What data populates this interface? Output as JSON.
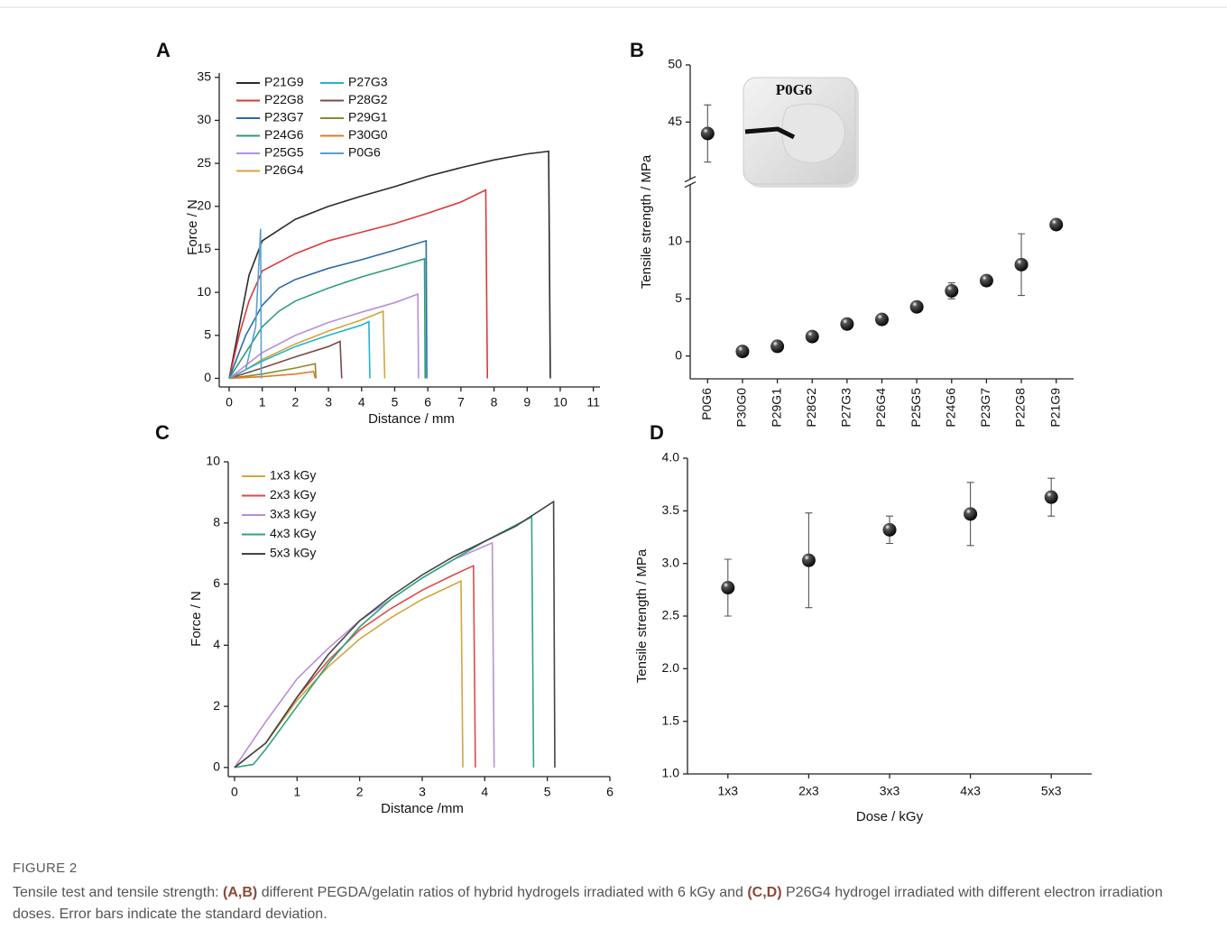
{
  "figure": {
    "label": "FIGURE 2",
    "caption": [
      "Tensile test and tensile strength: ",
      "(A,B)",
      " different PEGDA/gelatin ratios of hybrid hydrogels irradiated with 6 kGy and ",
      "(C,D)",
      " P26G4 hydrogel irradiated with different electron irradiation doses. Error bars indicate the standard deviation."
    ]
  },
  "chart_data": [
    {
      "type": "line",
      "panel": "A",
      "xlabel": "Distance / mm",
      "ylabel": "Force / N",
      "xlim": [
        -0.3,
        11.2
      ],
      "xticks": [
        0,
        1,
        2,
        3,
        4,
        5,
        6,
        7,
        8,
        9,
        10,
        11
      ],
      "ylim": [
        -1,
        35.5
      ],
      "yticks": [
        0,
        5,
        10,
        15,
        20,
        25,
        30,
        35
      ],
      "legend": "upper left",
      "series": [
        {
          "name": "P21G9",
          "color": "#2b2b2b",
          "x": [
            0,
            0.3,
            0.6,
            1,
            2,
            3,
            4,
            5,
            6,
            7,
            8,
            9,
            9.65,
            9.7
          ],
          "values": [
            0,
            6,
            12,
            16,
            18.5,
            20,
            21.2,
            22.3,
            23.5,
            24.5,
            25.4,
            26.1,
            26.4,
            0
          ]
        },
        {
          "name": "P22G8",
          "color": "#d93a3a",
          "x": [
            0,
            0.3,
            0.6,
            1,
            2,
            3,
            4,
            5,
            6,
            7,
            7.75,
            7.8
          ],
          "values": [
            0,
            5,
            9,
            12.5,
            14.5,
            16,
            17,
            18,
            19.2,
            20.5,
            21.9,
            0
          ]
        },
        {
          "name": "P23G7",
          "color": "#2a6aa8",
          "x": [
            0,
            0.5,
            1,
            1.5,
            2,
            3,
            4,
            5,
            5.95,
            5.97
          ],
          "values": [
            0,
            5,
            8.5,
            10.5,
            11.5,
            12.8,
            13.8,
            14.9,
            16,
            0
          ]
        },
        {
          "name": "P24G6",
          "color": "#2e9c7a",
          "x": [
            0,
            0.5,
            1,
            1.5,
            2,
            3,
            4,
            5,
            5.9,
            5.92
          ],
          "values": [
            0,
            3,
            6,
            7.8,
            9,
            10.5,
            11.8,
            12.9,
            13.9,
            0
          ]
        },
        {
          "name": "P25G5",
          "color": "#b98fd6",
          "x": [
            0,
            0.5,
            1,
            2,
            3,
            4,
            5,
            5.7,
            5.72
          ],
          "values": [
            0,
            1.5,
            3,
            5,
            6.5,
            7.7,
            8.8,
            9.8,
            0
          ]
        },
        {
          "name": "P26G4",
          "color": "#d4a53a",
          "x": [
            0,
            0.5,
            1,
            2,
            3,
            4,
            4.65,
            4.7
          ],
          "values": [
            0,
            1,
            2.2,
            4,
            5.5,
            6.8,
            7.8,
            0
          ]
        },
        {
          "name": "P27G3",
          "color": "#22b5c9",
          "x": [
            0,
            0.5,
            1,
            2,
            3,
            4,
            4.22,
            4.25
          ],
          "values": [
            0,
            1,
            2,
            3.7,
            5,
            6.2,
            6.6,
            0
          ]
        },
        {
          "name": "P28G2",
          "color": "#7a4a4a",
          "x": [
            0,
            1,
            2,
            3,
            3.35,
            3.4
          ],
          "values": [
            0,
            1.2,
            2.5,
            3.7,
            4.3,
            0
          ]
        },
        {
          "name": "P29G1",
          "color": "#8a8a2a",
          "x": [
            0,
            1,
            2,
            2.6,
            2.62
          ],
          "values": [
            0,
            0.5,
            1.2,
            1.7,
            0
          ]
        },
        {
          "name": "P30G0",
          "color": "#e07a2a",
          "x": [
            0,
            1,
            2,
            2.55,
            2.6
          ],
          "values": [
            0,
            0.2,
            0.5,
            0.8,
            0
          ]
        },
        {
          "name": "P0G6",
          "color": "#5aa0d0",
          "x": [
            0,
            0.5,
            0.8,
            0.95,
            0.97
          ],
          "values": [
            0,
            1,
            6,
            17.4,
            0
          ]
        }
      ]
    },
    {
      "type": "scatter",
      "panel": "B",
      "ylabel": "Tensile strength / MPa",
      "inset_label": "P0G6",
      "categories": [
        "P0G6",
        "P30G0",
        "P29G1",
        "P28G2",
        "P27G3",
        "P26G4",
        "P25G5",
        "P24G6",
        "P23G7",
        "P22G8",
        "P21G9"
      ],
      "values": [
        44,
        0.4,
        0.85,
        1.7,
        2.8,
        3.2,
        4.3,
        5.7,
        6.6,
        8,
        11.5
      ],
      "errors": [
        2.5,
        null,
        null,
        null,
        null,
        null,
        null,
        0.7,
        null,
        2.7,
        null
      ],
      "ylim": [
        -2,
        50
      ],
      "ybreak": [
        15,
        40
      ],
      "yticks": [
        0,
        5,
        10,
        45,
        50
      ]
    },
    {
      "type": "line",
      "panel": "C",
      "xlabel": "Distance /mm",
      "ylabel": "Force / N",
      "xlim": [
        -0.1,
        6
      ],
      "xticks": [
        0,
        1,
        2,
        3,
        4,
        5,
        6
      ],
      "ylim": [
        -0.3,
        10
      ],
      "yticks": [
        0,
        2,
        4,
        6,
        8,
        10
      ],
      "legend": "upper left",
      "series": [
        {
          "name": "1x3 kGy",
          "color": "#d4a53a",
          "x": [
            0,
            0.5,
            1,
            1.5,
            2,
            2.5,
            3,
            3.62,
            3.65
          ],
          "values": [
            0,
            0.8,
            2.2,
            3.3,
            4.2,
            4.9,
            5.5,
            6.1,
            0
          ]
        },
        {
          "name": "2x3 kGy",
          "color": "#e04848",
          "x": [
            0,
            0.5,
            1,
            1.5,
            2,
            2.5,
            3,
            3.5,
            3.82,
            3.85
          ],
          "values": [
            0,
            0.8,
            2.3,
            3.5,
            4.5,
            5.2,
            5.8,
            6.3,
            6.6,
            0
          ]
        },
        {
          "name": "3x3 kGy",
          "color": "#b98fd6",
          "x": [
            0,
            0.5,
            1,
            1.5,
            2,
            2.5,
            3,
            3.5,
            4.12,
            4.15
          ],
          "values": [
            0,
            1.5,
            2.9,
            3.9,
            4.8,
            5.5,
            6.2,
            6.8,
            7.35,
            0
          ]
        },
        {
          "name": "4x3 kGy",
          "color": "#2ea57f",
          "x": [
            0,
            0.3,
            0.5,
            1,
            1.5,
            2,
            2.5,
            3,
            3.5,
            4,
            4.75,
            4.78
          ],
          "values": [
            0,
            0.1,
            0.6,
            2,
            3.4,
            4.6,
            5.5,
            6.2,
            6.8,
            7.4,
            8.2,
            0
          ]
        },
        {
          "name": "5x3 kGy",
          "color": "#444444",
          "x": [
            0,
            0.5,
            1,
            1.5,
            2,
            2.5,
            3,
            3.5,
            4,
            4.5,
            5.1,
            5.12
          ],
          "values": [
            0,
            0.8,
            2.3,
            3.7,
            4.8,
            5.6,
            6.3,
            6.9,
            7.4,
            7.9,
            8.7,
            0
          ]
        }
      ]
    },
    {
      "type": "scatter",
      "panel": "D",
      "xlabel": "Dose / kGy",
      "ylabel": "Tensile strength / MPa",
      "categories": [
        "1x3",
        "2x3",
        "3x3",
        "4x3",
        "5x3"
      ],
      "values": [
        2.77,
        3.03,
        3.32,
        3.47,
        3.63
      ],
      "errors": [
        0.27,
        0.45,
        0.13,
        0.3,
        0.18
      ],
      "ylim": [
        1,
        4
      ],
      "yticks": [
        {
          "value": 1,
          "label": "1.0"
        },
        {
          "value": 1.5,
          "label": "1.5"
        },
        {
          "value": 2,
          "label": "2.0"
        },
        {
          "value": 2.5,
          "label": "2.5"
        },
        {
          "value": 3,
          "label": "3.0"
        },
        {
          "value": 3.5,
          "label": "3.5"
        },
        {
          "value": 4,
          "label": "4.0"
        }
      ]
    }
  ]
}
